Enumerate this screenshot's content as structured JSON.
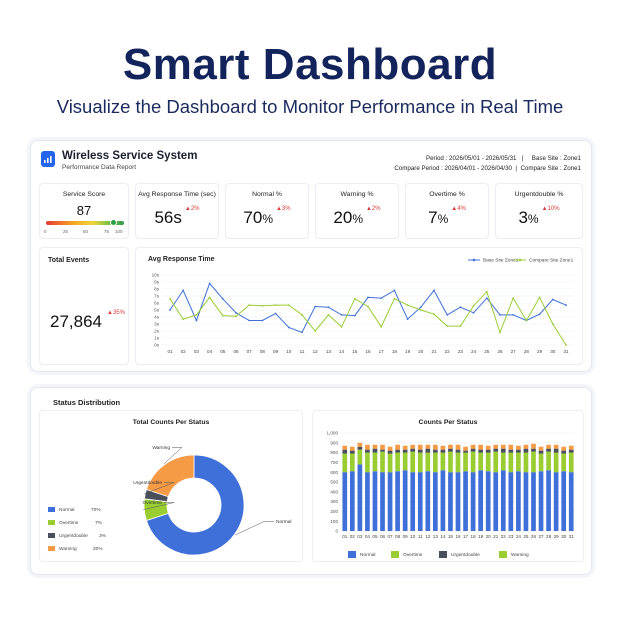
{
  "header": {
    "title": "Smart Dashboard",
    "subtitle": "Visualize the Dashboard to Monitor Performance in Real Time"
  },
  "system": {
    "title": "Wireless Service System",
    "subtitle": "Performance Data Report",
    "period_line": "Period : 2026/05/01 - 2026/05/31   |     Base Site : Zone1",
    "compare_line": "Compare Period : 2026/04/01 - 2026/04/30  |  Compare Site : Zone1",
    "icon": "signal-bars-icon"
  },
  "kpis": {
    "service_score": {
      "label": "Service Score",
      "value": "87",
      "scale_ticks": [
        "0",
        "25",
        "50",
        "75",
        "100"
      ],
      "level": 87
    },
    "avg_response": {
      "label": "Avg Response Time (sec)",
      "value": "56",
      "unit": "s",
      "delta": "▲2%"
    },
    "normal": {
      "label": "Normal %",
      "value": "70",
      "unit": "%",
      "delta": "▲3%"
    },
    "warning": {
      "label": "Warning %",
      "value": "20",
      "unit": "%",
      "delta": "▲2%"
    },
    "overtime": {
      "label": "Overtime %",
      "value": "7",
      "unit": "%",
      "delta": "▲4%"
    },
    "urgentdouble": {
      "label": "Urgentdouble %",
      "value": "3",
      "unit": "%",
      "delta": "▲10%"
    }
  },
  "total_events": {
    "label": "Total Events",
    "value": "27,864",
    "delta": "▲35%"
  },
  "status_section": {
    "title": "Status Distribution"
  },
  "colors": {
    "navy": "#13235c",
    "blue": "#3f6fd8",
    "green": "#9acd32",
    "dark": "#4a4f5c",
    "orange": "#f59a45",
    "red": "#d93b3b"
  },
  "chart_data": [
    {
      "type": "line",
      "title": "Avg Response Time",
      "x": [
        "01",
        "02",
        "03",
        "04",
        "05",
        "06",
        "07",
        "08",
        "09",
        "10",
        "11",
        "12",
        "13",
        "14",
        "15",
        "16",
        "17",
        "18",
        "19",
        "20",
        "21",
        "22",
        "23",
        "24",
        "25",
        "26",
        "27",
        "28",
        "29",
        "30",
        "31"
      ],
      "yticks": [
        "0s",
        "1s",
        "2s",
        "3s",
        "4s",
        "5s",
        "6s",
        "7s",
        "8s",
        "9s",
        "10s"
      ],
      "ylim": [
        0,
        10
      ],
      "series": [
        {
          "name": "Base Site Zone1",
          "color": "#3f6fd8",
          "values": [
            5,
            7.8,
            3.5,
            8.8,
            6.6,
            4.6,
            3.5,
            3.5,
            4.5,
            2.5,
            1.8,
            5.5,
            5.4,
            4.3,
            4.2,
            6.8,
            6.7,
            7.8,
            3.7,
            5.4,
            7.8,
            4.3,
            5.4,
            4.6,
            6.7,
            4.3,
            4.3,
            3.5,
            4.4,
            6.5,
            5.7
          ]
        },
        {
          "name": "Compare Site Zone1",
          "color": "#9acd32",
          "values": [
            6.6,
            3.7,
            4.3,
            6.8,
            4.2,
            4.1,
            5.7,
            5.6,
            5.7,
            5.7,
            4.3,
            2,
            4.3,
            2.6,
            6.6,
            5.5,
            2.6,
            6.6,
            5.7,
            5,
            4.4,
            2.7,
            2.7,
            5.6,
            7.6,
            1.8,
            6.7,
            3.5,
            6.8,
            3,
            0
          ]
        }
      ],
      "grid": true,
      "legend": "top-right"
    },
    {
      "type": "pie",
      "title": "Total Counts Per Status",
      "categories": [
        "Normal",
        "Overtime",
        "Urgentdouble",
        "Warning"
      ],
      "values": [
        70,
        7,
        3,
        20
      ],
      "value_labels": [
        "70%",
        "7%",
        "3%",
        "20%"
      ],
      "colors": [
        "#3f6fd8",
        "#9acd32",
        "#4a4f5c",
        "#f59a45"
      ],
      "donut": true,
      "legend": "left"
    },
    {
      "type": "bar",
      "stacked": true,
      "title": "Counts Per Status",
      "categories": [
        "01",
        "02",
        "03",
        "04",
        "05",
        "06",
        "07",
        "08",
        "09",
        "10",
        "11",
        "12",
        "13",
        "14",
        "15",
        "16",
        "17",
        "18",
        "19",
        "20",
        "21",
        "22",
        "23",
        "24",
        "25",
        "26",
        "27",
        "28",
        "29",
        "30",
        "31"
      ],
      "yticks": [
        "0",
        "100",
        "200",
        "300",
        "400",
        "500",
        "600",
        "700",
        "800",
        "900",
        "1,000"
      ],
      "ylim": [
        0,
        1000
      ],
      "series": [
        {
          "name": "Normal",
          "color": "#3f6fd8",
          "values": [
            600,
            610,
            680,
            600,
            610,
            600,
            600,
            610,
            620,
            600,
            600,
            610,
            600,
            620,
            600,
            600,
            610,
            600,
            620,
            610,
            600,
            620,
            600,
            610,
            600,
            600,
            610,
            620,
            600,
            610,
            600
          ]
        },
        {
          "name": "Overtime",
          "color": "#9acd32",
          "values": [
            190,
            180,
            150,
            200,
            190,
            210,
            190,
            190,
            180,
            210,
            200,
            190,
            200,
            180,
            210,
            200,
            190,
            210,
            180,
            190,
            210,
            180,
            200,
            190,
            200,
            210,
            180,
            190,
            200,
            180,
            200
          ]
        },
        {
          "name": "Urgentdouble",
          "color": "#4a4f5c",
          "values": [
            40,
            30,
            30,
            30,
            40,
            20,
            30,
            30,
            30,
            30,
            30,
            40,
            30,
            30,
            30,
            30,
            20,
            30,
            30,
            30,
            30,
            40,
            30,
            30,
            40,
            30,
            30,
            30,
            40,
            30,
            30
          ]
        },
        {
          "name": "Warning",
          "color": "#f59a45",
          "values": [
            40,
            40,
            40,
            50,
            40,
            50,
            40,
            50,
            40,
            40,
            50,
            40,
            50,
            40,
            40,
            50,
            40,
            40,
            50,
            40,
            40,
            40,
            50,
            40,
            40,
            50,
            40,
            40,
            40,
            40,
            40
          ]
        }
      ],
      "legend": "bottom"
    }
  ]
}
